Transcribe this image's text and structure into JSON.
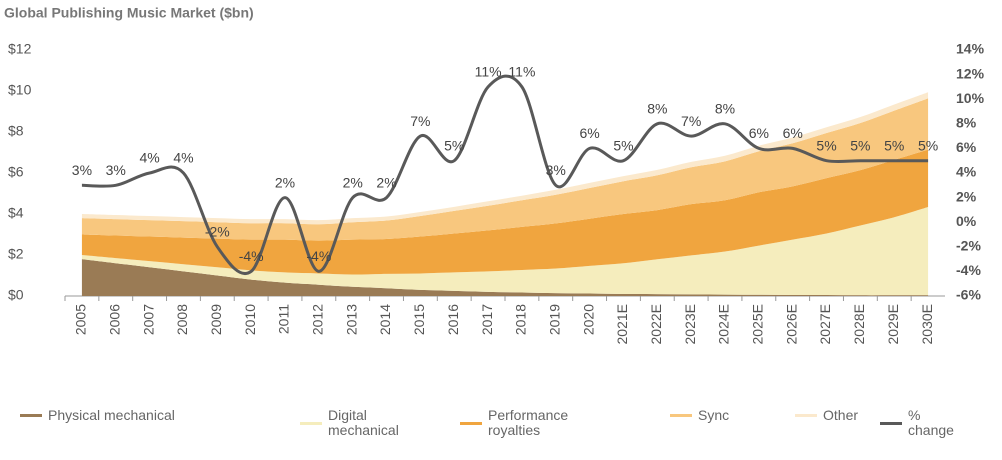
{
  "chart_data": {
    "type": "area",
    "title": "Global Publishing Music Market ($bn)",
    "categories": [
      "2005",
      "2006",
      "2007",
      "2008",
      "2009",
      "2010",
      "2011",
      "2012",
      "2013",
      "2014",
      "2015",
      "2016",
      "2017",
      "2018",
      "2019",
      "2020",
      "2021E",
      "2022E",
      "2023E",
      "2024E",
      "2025E",
      "2026E",
      "2027E",
      "2028E",
      "2029E",
      "2030E"
    ],
    "ylim": [
      0,
      12
    ],
    "yticks": [
      {
        "value": 0,
        "label": "$0"
      },
      {
        "value": 2,
        "label": "$2"
      },
      {
        "value": 4,
        "label": "$4"
      },
      {
        "value": 6,
        "label": "$6"
      },
      {
        "value": 8,
        "label": "$8"
      },
      {
        "value": 10,
        "label": "$10"
      },
      {
        "value": 12,
        "label": "$12"
      }
    ],
    "y2lim": [
      -6,
      14
    ],
    "y2ticks": [
      {
        "value": -6,
        "label": "-6%"
      },
      {
        "value": -4,
        "label": "-4%"
      },
      {
        "value": -2,
        "label": "-2%"
      },
      {
        "value": 0,
        "label": "0%"
      },
      {
        "value": 2,
        "label": "2%"
      },
      {
        "value": 4,
        "label": "4%"
      },
      {
        "value": 6,
        "label": "6%"
      },
      {
        "value": 8,
        "label": "8%"
      },
      {
        "value": 10,
        "label": "10%"
      },
      {
        "value": 12,
        "label": "12%"
      },
      {
        "value": 14,
        "label": "14%"
      }
    ],
    "series": [
      {
        "name": "Physical mechanical",
        "color": "#9a7b55",
        "values": [
          1.8,
          1.6,
          1.4,
          1.2,
          1.0,
          0.8,
          0.65,
          0.55,
          0.45,
          0.38,
          0.3,
          0.25,
          0.2,
          0.17,
          0.14,
          0.12,
          0.1,
          0.09,
          0.08,
          0.07,
          0.06,
          0.05,
          0.05,
          0.04,
          0.04,
          0.04
        ]
      },
      {
        "name": "Digital mechanical",
        "color": "#f5edbd",
        "values": [
          0.2,
          0.25,
          0.3,
          0.35,
          0.4,
          0.45,
          0.5,
          0.55,
          0.6,
          0.7,
          0.8,
          0.9,
          1.0,
          1.1,
          1.2,
          1.35,
          1.5,
          1.7,
          1.9,
          2.1,
          2.4,
          2.7,
          3.0,
          3.4,
          3.8,
          4.3
        ]
      },
      {
        "name": "Performance royalties",
        "color": "#f0a53f",
        "values": [
          1.0,
          1.1,
          1.2,
          1.3,
          1.4,
          1.5,
          1.6,
          1.6,
          1.7,
          1.7,
          1.8,
          1.9,
          2.0,
          2.1,
          2.2,
          2.3,
          2.4,
          2.4,
          2.5,
          2.5,
          2.6,
          2.6,
          2.7,
          2.7,
          2.8,
          2.8
        ]
      },
      {
        "name": "Sync",
        "color": "#f8c77e",
        "values": [
          0.8,
          0.8,
          0.8,
          0.8,
          0.8,
          0.8,
          0.8,
          0.8,
          0.85,
          0.9,
          1.0,
          1.1,
          1.2,
          1.3,
          1.4,
          1.5,
          1.6,
          1.7,
          1.8,
          1.9,
          2.0,
          2.1,
          2.2,
          2.3,
          2.4,
          2.5
        ]
      },
      {
        "name": "Other",
        "color": "#fbe9cd",
        "values": [
          0.2,
          0.2,
          0.2,
          0.2,
          0.2,
          0.2,
          0.2,
          0.2,
          0.2,
          0.2,
          0.2,
          0.2,
          0.22,
          0.22,
          0.24,
          0.25,
          0.25,
          0.26,
          0.26,
          0.27,
          0.27,
          0.28,
          0.28,
          0.29,
          0.3,
          0.3
        ]
      },
      {
        "name": "% change",
        "color": "#595959",
        "type": "line",
        "axis": "y2",
        "values": [
          3,
          3,
          4,
          4,
          -2,
          -4,
          2,
          -4,
          2,
          2,
          7,
          5,
          11,
          11,
          3,
          6,
          5,
          8,
          7,
          8,
          6,
          6,
          5,
          5,
          5,
          5
        ],
        "value_labels": [
          "3%",
          "3%",
          "4%",
          "4%",
          "-2%",
          "-4%",
          "2%",
          "-4%",
          "2%",
          "2%",
          "7%",
          "5%",
          "11%",
          "11%",
          "3%",
          "6%",
          "5%",
          "8%",
          "7%",
          "8%",
          "6%",
          "6%",
          "5%",
          "5%",
          "5%",
          "5%"
        ]
      }
    ]
  }
}
